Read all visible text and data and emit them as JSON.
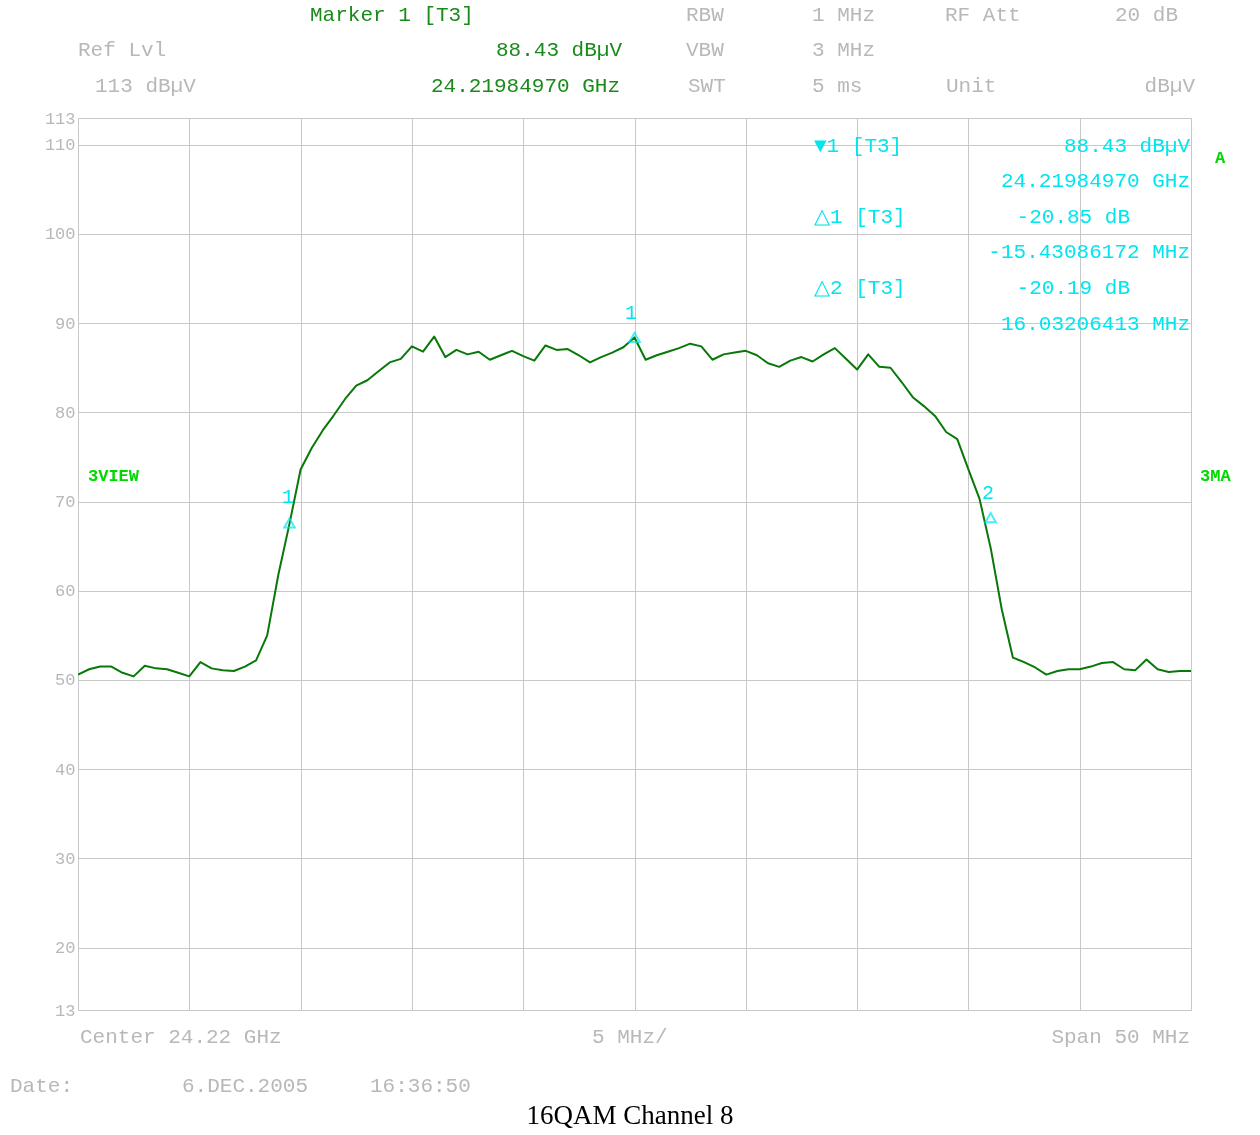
{
  "chart_data": {
    "type": "line",
    "title": "16QAM Channel 8",
    "categories": [
      null,
      null,
      null,
      null,
      null,
      null,
      null,
      null,
      null,
      null,
      null,
      null,
      null,
      null,
      null,
      null,
      null,
      null,
      null,
      null,
      null,
      null,
      null,
      null,
      null,
      null,
      null,
      null,
      null,
      null,
      null,
      null,
      null,
      null,
      null,
      null,
      null,
      null,
      null,
      null,
      null,
      null,
      null,
      null,
      null,
      null,
      null,
      null,
      null,
      null,
      null,
      null,
      null,
      null,
      null,
      null,
      null,
      null,
      null,
      null,
      null,
      null,
      null,
      null,
      null,
      null,
      null,
      null,
      null,
      null,
      null,
      null,
      null,
      null,
      null,
      null,
      null,
      null,
      null,
      null,
      null,
      null,
      null,
      null,
      null,
      null,
      null,
      null,
      null,
      null,
      null,
      null,
      null,
      null,
      null,
      null,
      null,
      null,
      null,
      null,
      null
    ],
    "ylim": [
      13,
      113
    ],
    "yticks": [
      13,
      20,
      30,
      40,
      50,
      60,
      70,
      80,
      90,
      100,
      110,
      113
    ],
    "grid": true,
    "line_style": "solid",
    "series": [
      {
        "color": "#087808",
        "values": [
          50.6,
          51.2,
          51.5,
          51.5,
          50.8,
          50.4,
          51.6,
          51.3,
          51.2,
          50.8,
          50.4,
          52.0,
          51.3,
          51.1,
          51.0,
          51.5,
          52.2,
          55.0,
          61.8,
          67.5,
          73.6,
          76.0,
          78.0,
          79.7,
          81.5,
          83.0,
          83.6,
          84.6,
          85.6,
          86.0,
          87.4,
          86.8,
          88.5,
          86.2,
          87.0,
          86.5,
          86.8,
          85.9,
          86.4,
          86.9,
          86.3,
          85.8,
          87.5,
          87.0,
          87.1,
          86.4,
          85.6,
          86.2,
          86.7,
          87.3,
          88.4,
          85.9,
          86.4,
          86.8,
          87.2,
          87.7,
          87.4,
          85.9,
          86.5,
          86.7,
          86.9,
          86.4,
          85.5,
          85.1,
          85.8,
          86.2,
          85.7,
          86.5,
          87.2,
          86.0,
          84.8,
          86.5,
          85.1,
          85.0,
          83.4,
          81.7,
          80.7,
          79.6,
          77.8,
          77.0,
          73.6,
          70.3,
          64.8,
          57.9,
          52.5,
          52.0,
          51.4,
          50.6,
          51.0,
          51.2,
          51.2,
          51.5,
          51.9,
          52.0,
          51.2,
          51.1,
          52.3,
          51.2,
          50.9,
          51.0,
          51.0
        ]
      },
      {
        "type": "scatter",
        "color": "#00e5ee",
        "marker": "triangle",
        "values": [
          null,
          null,
          null,
          null,
          null,
          null,
          null,
          null,
          null,
          null,
          null,
          null,
          null,
          null,
          null,
          null,
          null,
          null,
          null,
          67.6,
          null,
          null,
          null,
          null,
          null,
          null,
          null,
          null,
          null,
          null,
          null,
          null,
          null,
          null,
          null,
          null,
          null,
          null,
          null,
          null,
          null,
          null,
          null,
          null,
          null,
          null,
          null,
          null,
          null,
          null,
          88.4,
          null,
          null,
          null,
          null,
          null,
          null,
          null,
          null,
          null,
          null,
          null,
          null,
          null,
          null,
          null,
          null,
          null,
          null,
          null,
          null,
          null,
          null,
          null,
          null,
          null,
          null,
          null,
          null,
          null,
          null,
          null,
          68.2,
          null,
          null,
          null,
          null,
          null,
          null,
          null,
          null,
          null,
          null,
          null,
          null,
          null,
          null,
          null,
          null,
          null,
          null
        ]
      }
    ],
    "annotations": [
      "Marker 1 [T3]",
      "Ref Lvl",
      "88.43 dBµV",
      "113 dBµV",
      "24.21984970 GHz",
      "RBW",
      "1 MHz",
      "RF Att",
      "20 dB",
      "VBW",
      "3 MHz",
      "SWT",
      "5 ms",
      "Unit",
      "dBµV",
      "▼1 [T3]",
      "88.43 dBµV",
      "24.21984970 GHz",
      "△1 [T3]",
      "-20.85 dB",
      "-15.43086172 MHz",
      "△2 [T3]",
      "-20.19 dB",
      "16.03206413 MHz",
      "3VIEW",
      "3MA",
      "A",
      "Center 24.22 GHz",
      "5 MHz/",
      "Span 50 MHz",
      "Date:",
      "6.DEC.2005",
      "16:36:50",
      "1",
      "1",
      "2"
    ]
  }
}
